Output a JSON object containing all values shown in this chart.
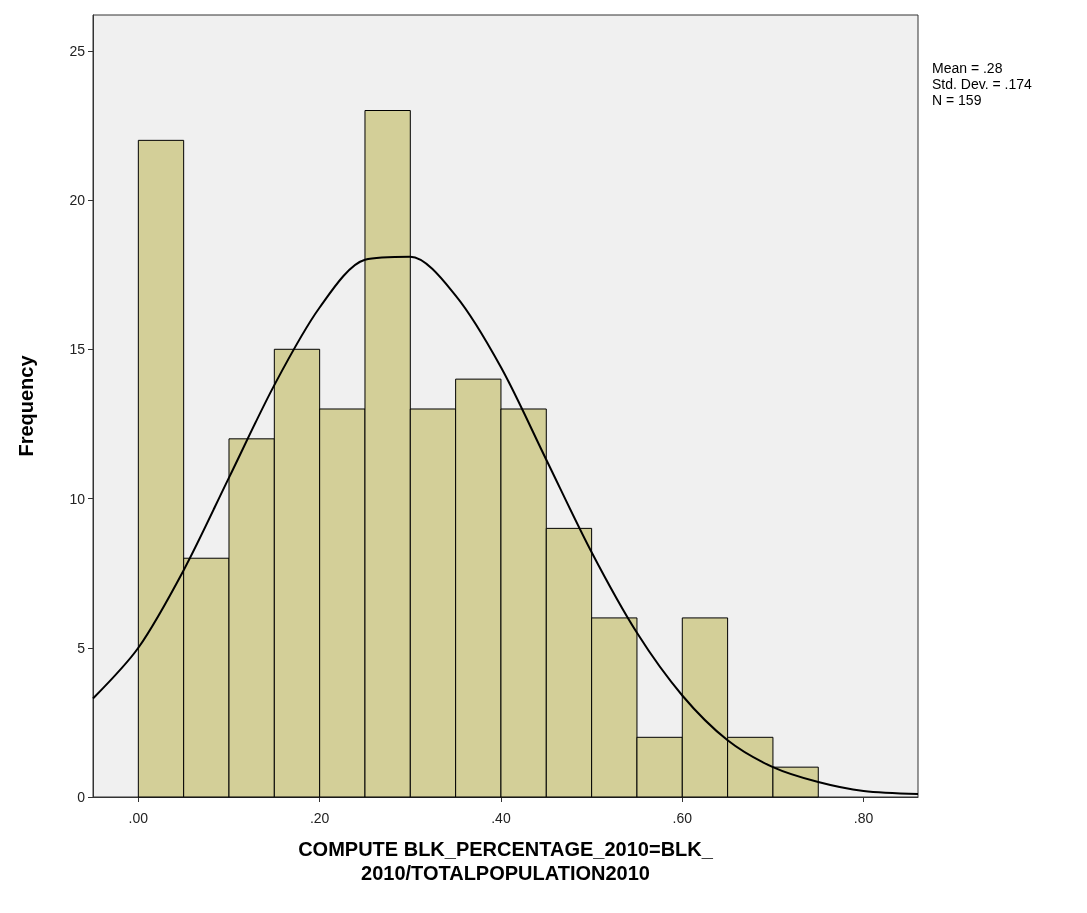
{
  "chart_data": {
    "type": "histogram",
    "xlabel": "COMPUTE BLK_PERCENTAGE_2010=BLK_\n2010/TOTALPOPULATION2010",
    "ylabel": "Frequency",
    "annotations": [
      "Mean = .28",
      "Std. Dev. = .174",
      "N = 159"
    ],
    "series": [
      {
        "color": "#d3cf98",
        "bins": [
          0,
          0.05,
          0.1,
          0.15,
          0.2,
          0.25,
          0.3,
          0.35,
          0.4,
          0.45,
          0.5,
          0.55,
          0.6,
          0.65,
          0.7,
          0.75
        ],
        "values": [
          22,
          8,
          12,
          15,
          13,
          23,
          13,
          14,
          13,
          9,
          6,
          2,
          6,
          2,
          1
        ]
      },
      {
        "type": "line",
        "color": "#000000",
        "x": [
          -0.05,
          0,
          0.05,
          0.1,
          0.15,
          0.2,
          0.25,
          0.3,
          0.35,
          0.4,
          0.45,
          0.5,
          0.55,
          0.6,
          0.65,
          0.7,
          0.75,
          0.8,
          0.86
        ],
        "values": [
          3.3,
          5.0,
          7.6,
          10.7,
          13.8,
          16.4,
          18.0,
          18.1,
          16.8,
          14.4,
          11.3,
          8.2,
          5.5,
          3.4,
          1.9,
          1.0,
          0.5,
          0.2,
          0.1
        ]
      }
    ],
    "xlim": [
      -0.05,
      0.86
    ],
    "xticks": [
      {
        "value": 0,
        "label": ".00"
      },
      {
        "value": 0.2,
        "label": ".20"
      },
      {
        "value": 0.4,
        "label": ".40"
      },
      {
        "value": 0.6,
        "label": ".60"
      },
      {
        "value": 0.8,
        "label": ".80"
      }
    ],
    "ylim": [
      0,
      26.2
    ],
    "yticks": [
      0,
      5,
      10,
      15,
      20,
      25
    ],
    "grid": false,
    "marker": "none",
    "line_style": "solid"
  }
}
